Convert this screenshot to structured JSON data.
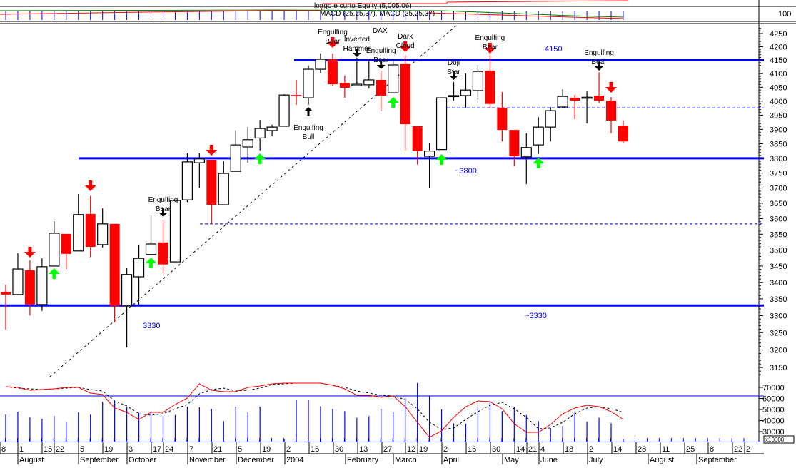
{
  "top_panel": {
    "equity_label": "longo e curto Equity (5,005.06)",
    "macd_label": "MACD (25,25,37), MACD (25,25,37)",
    "scale_label": "100"
  },
  "chart_data": {
    "type": "candlestick",
    "title": "DAX",
    "y_scale": "log",
    "ylim": [
      3120,
      4290
    ],
    "y_ticks": [
      "4250",
      "4200",
      "4150",
      "4100",
      "4050",
      "4000",
      "3950",
      "3900",
      "3850",
      "3800",
      "3750",
      "3700",
      "3650",
      "3600",
      "3550",
      "3500",
      "3450",
      "3400",
      "3350",
      "3300",
      "3250",
      "3200",
      "3150"
    ],
    "candles": [
      {
        "o": 3371,
        "h": 3393,
        "l": 3259,
        "c": 3363
      },
      {
        "o": 3363,
        "h": 3490,
        "l": 3363,
        "c": 3441
      },
      {
        "o": 3437,
        "h": 3468,
        "l": 3300,
        "c": 3333
      },
      {
        "o": 3333,
        "h": 3474,
        "l": 3314,
        "c": 3448
      },
      {
        "o": 3450,
        "h": 3592,
        "l": 3450,
        "c": 3553
      },
      {
        "o": 3551,
        "h": 3551,
        "l": 3441,
        "c": 3488
      },
      {
        "o": 3497,
        "h": 3680,
        "l": 3497,
        "c": 3613
      },
      {
        "o": 3615,
        "h": 3674,
        "l": 3477,
        "c": 3510
      },
      {
        "o": 3517,
        "h": 3633,
        "l": 3508,
        "c": 3583
      },
      {
        "o": 3583,
        "h": 3583,
        "l": 3280,
        "c": 3329
      },
      {
        "o": 3329,
        "h": 3443,
        "l": 3207,
        "c": 3424
      },
      {
        "o": 3417,
        "h": 3515,
        "l": 3329,
        "c": 3474
      },
      {
        "o": 3486,
        "h": 3611,
        "l": 3486,
        "c": 3519
      },
      {
        "o": 3524,
        "h": 3596,
        "l": 3428,
        "c": 3455
      },
      {
        "o": 3463,
        "h": 3659,
        "l": 3463,
        "c": 3659
      },
      {
        "o": 3661,
        "h": 3817,
        "l": 3654,
        "c": 3788
      },
      {
        "o": 3785,
        "h": 3817,
        "l": 3701,
        "c": 3798
      },
      {
        "o": 3795,
        "h": 3795,
        "l": 3583,
        "c": 3645
      },
      {
        "o": 3645,
        "h": 3791,
        "l": 3645,
        "c": 3749
      },
      {
        "o": 3756,
        "h": 3898,
        "l": 3756,
        "c": 3846
      },
      {
        "o": 3839,
        "h": 3908,
        "l": 3785,
        "c": 3864
      },
      {
        "o": 3870,
        "h": 3933,
        "l": 3827,
        "c": 3903
      },
      {
        "o": 3896,
        "h": 3916,
        "l": 3876,
        "c": 3908
      },
      {
        "o": 3911,
        "h": 4025,
        "l": 3911,
        "c": 4022
      },
      {
        "o": 4022,
        "h": 4077,
        "l": 3987,
        "c": 4020
      },
      {
        "o": 4012,
        "h": 4130,
        "l": 3987,
        "c": 4116
      },
      {
        "o": 4116,
        "h": 4175,
        "l": 4103,
        "c": 4153
      },
      {
        "o": 4153,
        "h": 4175,
        "l": 4056,
        "c": 4061
      },
      {
        "o": 4066,
        "h": 4093,
        "l": 4012,
        "c": 4048
      },
      {
        "o": 4056,
        "h": 4159,
        "l": 4056,
        "c": 4061
      },
      {
        "o": 4059,
        "h": 4153,
        "l": 4046,
        "c": 4077
      },
      {
        "o": 4077,
        "h": 4111,
        "l": 3964,
        "c": 4020
      },
      {
        "o": 4030,
        "h": 4153,
        "l": 4030,
        "c": 4132
      },
      {
        "o": 4135,
        "h": 4169,
        "l": 3827,
        "c": 3918
      },
      {
        "o": 3911,
        "h": 3911,
        "l": 3779,
        "c": 3825
      },
      {
        "o": 3807,
        "h": 3853,
        "l": 3699,
        "c": 3825
      },
      {
        "o": 3830,
        "h": 4012,
        "l": 3830,
        "c": 4012
      },
      {
        "o": 4020,
        "h": 4069,
        "l": 4002,
        "c": 4020
      },
      {
        "o": 4020,
        "h": 4100,
        "l": 3976,
        "c": 4040
      },
      {
        "o": 4038,
        "h": 4132,
        "l": 3998,
        "c": 4108
      },
      {
        "o": 4111,
        "h": 4188,
        "l": 3976,
        "c": 3990
      },
      {
        "o": 3976,
        "h": 4033,
        "l": 3858,
        "c": 3898
      },
      {
        "o": 3898,
        "h": 3898,
        "l": 3774,
        "c": 3807
      },
      {
        "o": 3805,
        "h": 3886,
        "l": 3713,
        "c": 3837
      },
      {
        "o": 3846,
        "h": 3943,
        "l": 3815,
        "c": 3908
      },
      {
        "o": 3908,
        "h": 3979,
        "l": 3858,
        "c": 3966
      },
      {
        "o": 3979,
        "h": 4043,
        "l": 3979,
        "c": 4017
      },
      {
        "o": 4012,
        "h": 4022,
        "l": 3936,
        "c": 4002
      },
      {
        "o": 4012,
        "h": 4035,
        "l": 3921,
        "c": 4014
      },
      {
        "o": 4020,
        "h": 4105,
        "l": 3993,
        "c": 4002
      },
      {
        "o": 4002,
        "h": 4014,
        "l": 3886,
        "c": 3931
      },
      {
        "o": 3913,
        "h": 3931,
        "l": 3853,
        "c": 3858
      }
    ],
    "levels": [
      {
        "value": 4150,
        "style": "solid",
        "label": "4150"
      },
      {
        "value": 3800,
        "style": "solid",
        "label": "~3800"
      },
      {
        "value": 3330,
        "style": "solid",
        "label": "3330",
        "label2": "~3330"
      },
      {
        "value": 3976,
        "style": "dashed"
      },
      {
        "value": 3583,
        "style": "dashed"
      }
    ],
    "annotations": [
      {
        "candle": 2,
        "arrow": "down",
        "color": "red",
        "lines": []
      },
      {
        "candle": 7,
        "arrow": "down",
        "color": "red",
        "lines": []
      },
      {
        "candle": 13,
        "arrow": "down",
        "color": "black",
        "lines": [
          "Engulfing",
          "Bear"
        ]
      },
      {
        "candle": 17,
        "arrow": "down",
        "color": "red",
        "lines": []
      },
      {
        "candle": 25,
        "arrow": "up",
        "color": "black",
        "lines": [
          "Engulfing",
          "Bull"
        ]
      },
      {
        "candle": 27,
        "arrow": "down",
        "color": "red",
        "lines": [
          "Engulfing",
          "Bear"
        ]
      },
      {
        "candle": 29,
        "arrow": "down",
        "color": "black",
        "lines": [
          "Inverted",
          "Hammer"
        ]
      },
      {
        "candle": 31,
        "arrow": "down",
        "color": "black",
        "lines": [
          "Engulfing",
          "Bear"
        ]
      },
      {
        "candle": 33,
        "arrow": "down",
        "color": "red",
        "lines": [
          "Dark",
          "Cloud"
        ]
      },
      {
        "candle": 37,
        "arrow": "down",
        "color": "black",
        "lines": [
          "Doji",
          "Star"
        ]
      },
      {
        "candle": 40,
        "arrow": "down",
        "color": "red",
        "lines": [
          "Engulfing",
          "Bear"
        ]
      },
      {
        "candle": 49,
        "arrow": "down",
        "color": "black",
        "lines": [
          "Engulfing",
          "Bear"
        ]
      },
      {
        "candle": 50,
        "arrow": "down",
        "color": "red",
        "lines": []
      },
      {
        "candle": 4,
        "arrow": "up",
        "color": "green",
        "lines": []
      },
      {
        "candle": 12,
        "arrow": "up",
        "color": "green",
        "lines": []
      },
      {
        "candle": 21,
        "arrow": "up",
        "color": "green",
        "lines": []
      },
      {
        "candle": 32,
        "arrow": "up",
        "color": "green",
        "lines": []
      },
      {
        "candle": 36,
        "arrow": "up",
        "color": "green",
        "lines": []
      },
      {
        "candle": 44,
        "arrow": "up",
        "color": "green",
        "lines": []
      }
    ],
    "volume": {
      "ticks": [
        "70000",
        "60000",
        "50000",
        "40000",
        "30000"
      ],
      "unit_label": "x10000",
      "values": [
        45500,
        48000,
        43000,
        41500,
        44000,
        38500,
        47500,
        45500,
        57000,
        57500,
        52000,
        47000,
        47500,
        44000,
        45000,
        52500,
        52000,
        50500,
        39500,
        52500,
        47500,
        52500,
        null,
        23000,
        59000,
        59000,
        53000,
        50500,
        48500,
        42500,
        44000,
        50500,
        47500,
        60500,
        74000,
        62000,
        50000,
        37500,
        37000,
        52000,
        56500,
        48500,
        52500,
        45000,
        39500,
        33000,
        35000,
        47000,
        39000,
        42500,
        37500,
        23000
      ]
    },
    "macd": [
      38,
      37,
      33,
      34,
      35,
      37,
      37,
      29,
      27,
      8,
      2,
      -8,
      2,
      2,
      13,
      22,
      42,
      33,
      31,
      31,
      37,
      39,
      42,
      43,
      43,
      43,
      43,
      40,
      35,
      26,
      26,
      23,
      25,
      10,
      -12,
      -33,
      -24,
      -5,
      10,
      18,
      17,
      7,
      -14,
      -26,
      -26,
      -15,
      0,
      8,
      12,
      10,
      3,
      -8
    ],
    "macd_signal": [
      38,
      36,
      35,
      34,
      35,
      36,
      37,
      34,
      32,
      18,
      11,
      0,
      -2,
      0,
      7,
      13,
      28,
      34,
      36,
      32,
      33,
      36,
      41,
      42,
      43,
      43,
      43,
      40,
      37,
      32,
      29,
      26,
      25,
      20,
      7,
      -12,
      -22,
      -20,
      -8,
      3,
      12,
      16,
      7,
      -5,
      -21,
      -20,
      -12,
      0,
      8,
      10,
      7,
      2
    ],
    "x_day_labels": [
      "8",
      "1",
      "15",
      "22",
      "5",
      "19",
      "3",
      "17",
      "24",
      "7",
      "21",
      "5",
      "19",
      "2",
      "16",
      "30",
      "13",
      "27",
      "12",
      "19",
      "2",
      "16",
      "30",
      "14",
      "21",
      "4",
      "18",
      "2",
      "14",
      "28",
      "11",
      "25",
      "8",
      "22",
      "2"
    ],
    "x_month_labels": [
      "August",
      "September",
      "October",
      "November",
      "December",
      "2004",
      "February",
      "March",
      "April",
      "May",
      "June",
      "July",
      "August",
      "September"
    ],
    "colors": {
      "up": "#ffffff",
      "down": "#ff0000",
      "levels": "#0000ff",
      "volume": "#0000ff",
      "macd": "#ff0000",
      "signal": "#000000",
      "bull_arrow": "#00ff00"
    }
  }
}
